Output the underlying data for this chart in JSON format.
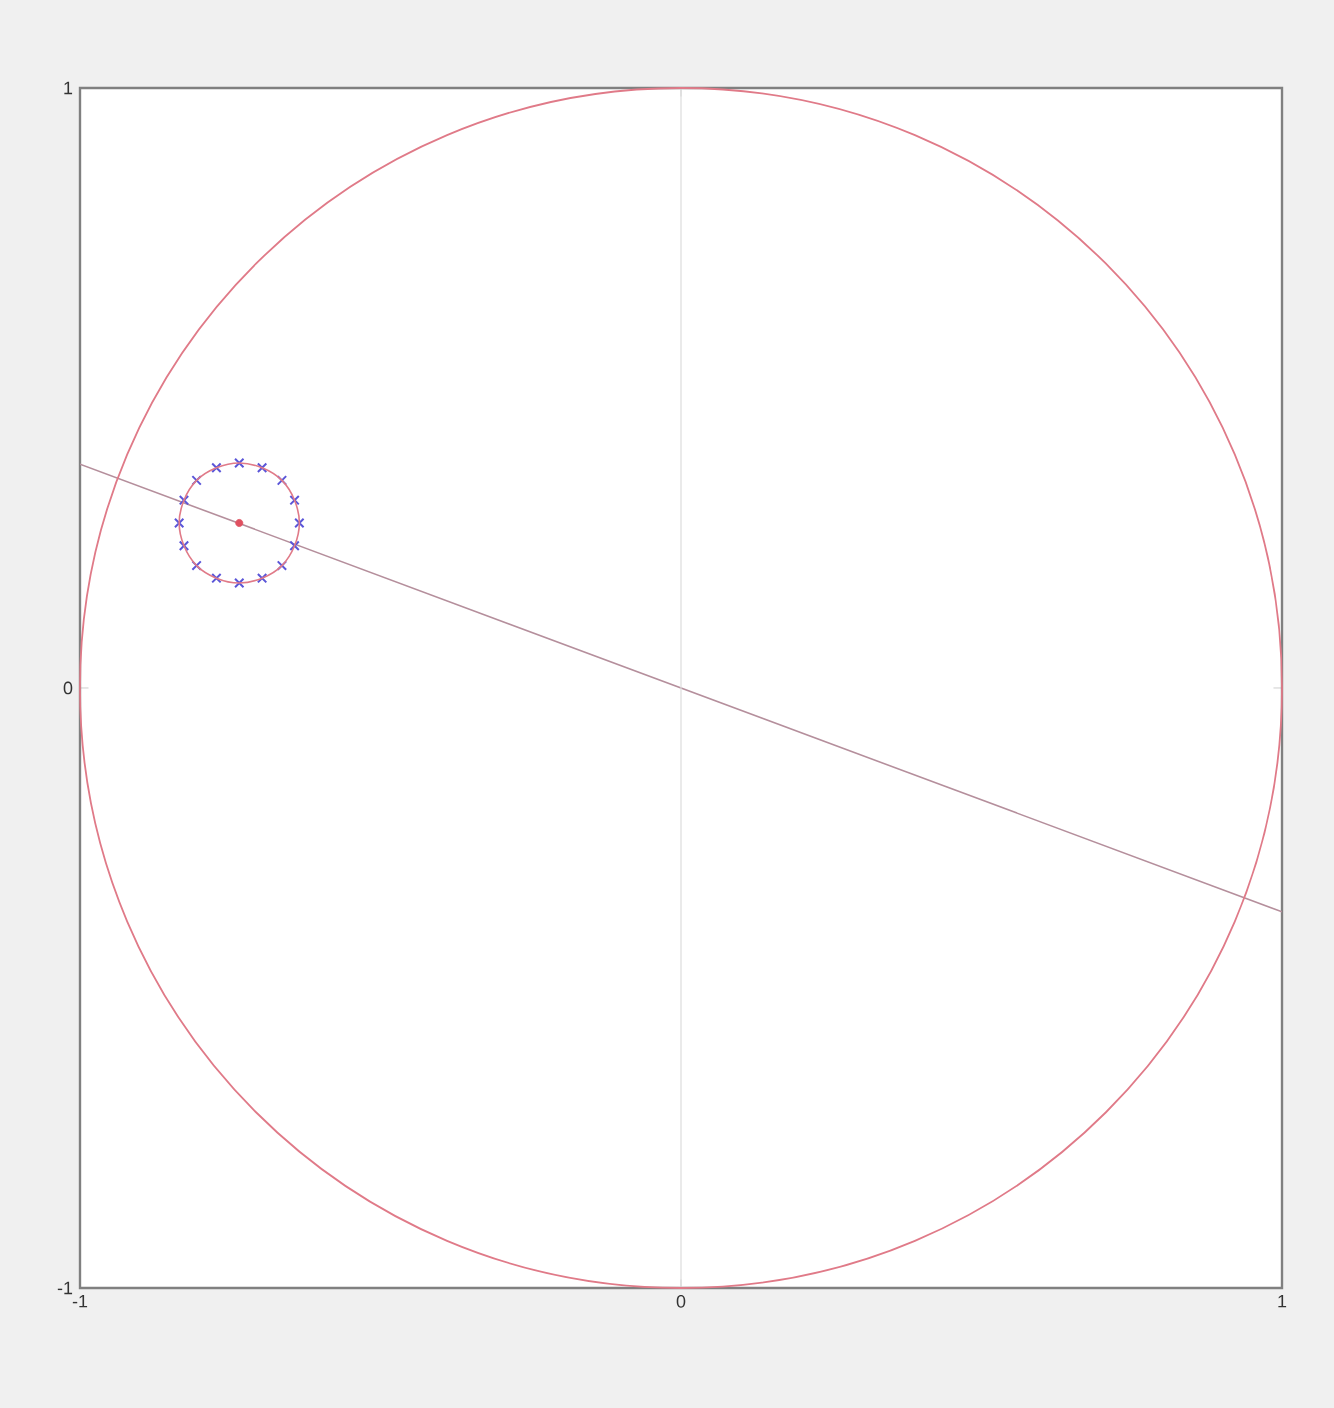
{
  "chart_data": {
    "type": "line",
    "xlim": [
      -1,
      1
    ],
    "ylim": [
      -1,
      1
    ],
    "xticks": [
      -1,
      0,
      1
    ],
    "yticks": [
      -1,
      0,
      1
    ],
    "grid": false,
    "ref_lines": [
      {
        "axis": "x",
        "value": 0,
        "color": "#dcdcdc"
      }
    ],
    "series": [
      {
        "color": "#b58f9c",
        "marker": "none",
        "x": [
          -1,
          1
        ],
        "values": [
          0.373,
          -0.373
        ]
      },
      {
        "type": "scatter",
        "color": "#5a55d8",
        "marker": "cross",
        "x": [
          -0.635,
          -0.643,
          -0.664,
          -0.697,
          -0.735,
          -0.773,
          -0.806,
          -0.827,
          -0.835,
          -0.827,
          -0.806,
          -0.773,
          -0.735,
          -0.697,
          -0.664,
          -0.643
        ],
        "values": [
          0.275,
          0.313,
          0.346,
          0.367,
          0.375,
          0.367,
          0.346,
          0.313,
          0.275,
          0.237,
          0.204,
          0.183,
          0.175,
          0.183,
          0.204,
          0.237
        ]
      },
      {
        "type": "scatter",
        "color": "#e05060",
        "marker": "circle",
        "x": [
          -0.735
        ],
        "values": [
          0.275
        ]
      }
    ]
  }
}
